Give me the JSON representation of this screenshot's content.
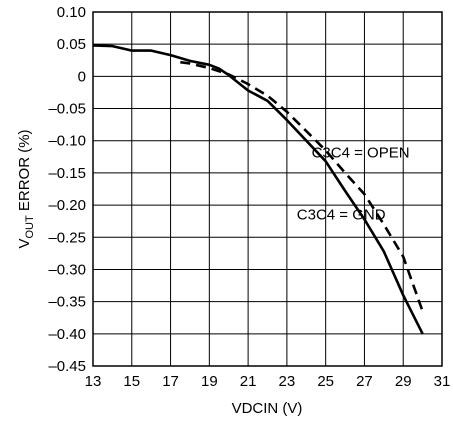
{
  "chart_data": {
    "type": "line",
    "xlabel": "VDCIN (V)",
    "ylabel": {
      "pre": "V",
      "sub": "OUT",
      "post": " ERROR (%)"
    },
    "xlim": [
      13,
      31
    ],
    "ylim": [
      -0.45,
      0.1
    ],
    "xticks": [
      13,
      15,
      17,
      19,
      21,
      23,
      25,
      27,
      29,
      31
    ],
    "yticks": [
      0.1,
      0.05,
      0,
      -0.05,
      -0.1,
      -0.15,
      -0.2,
      -0.25,
      -0.3,
      -0.35,
      -0.4,
      -0.45
    ],
    "ytick_labels": [
      "0.10",
      "0.05",
      "0",
      "–0.05",
      "–0.10",
      "–0.15",
      "–0.20",
      "–0.25",
      "–0.30",
      "–0.35",
      "–0.40",
      "–0.45"
    ],
    "grid": true,
    "series": [
      {
        "name": "C3C4 = GND",
        "style": "solid",
        "x": [
          13,
          14,
          15,
          16,
          17,
          18,
          19,
          19.5,
          20,
          21,
          22,
          23,
          24,
          25,
          26,
          27,
          28,
          29,
          30
        ],
        "y": [
          0.048,
          0.047,
          0.04,
          0.04,
          0.033,
          0.024,
          0.018,
          0.012,
          0.002,
          -0.022,
          -0.038,
          -0.068,
          -0.1,
          -0.132,
          -0.178,
          -0.222,
          -0.272,
          -0.34,
          -0.4
        ]
      },
      {
        "name": "C3C4 = OPEN",
        "style": "dashed",
        "x": [
          17.5,
          18,
          19,
          20,
          21,
          22,
          23,
          24,
          25,
          26,
          27,
          28,
          29,
          30
        ],
        "y": [
          0.022,
          0.02,
          0.013,
          0.003,
          -0.012,
          -0.03,
          -0.055,
          -0.085,
          -0.115,
          -0.15,
          -0.183,
          -0.23,
          -0.28,
          -0.365
        ]
      }
    ],
    "annotations": [
      {
        "text": "C3C4 = OPEN",
        "series": "C3C4 = OPEN",
        "x": 26.8,
        "y": -0.118
      },
      {
        "text": "C3C4 = GND",
        "series": "C3C4 = GND",
        "x": 25.8,
        "y": -0.215
      }
    ]
  }
}
